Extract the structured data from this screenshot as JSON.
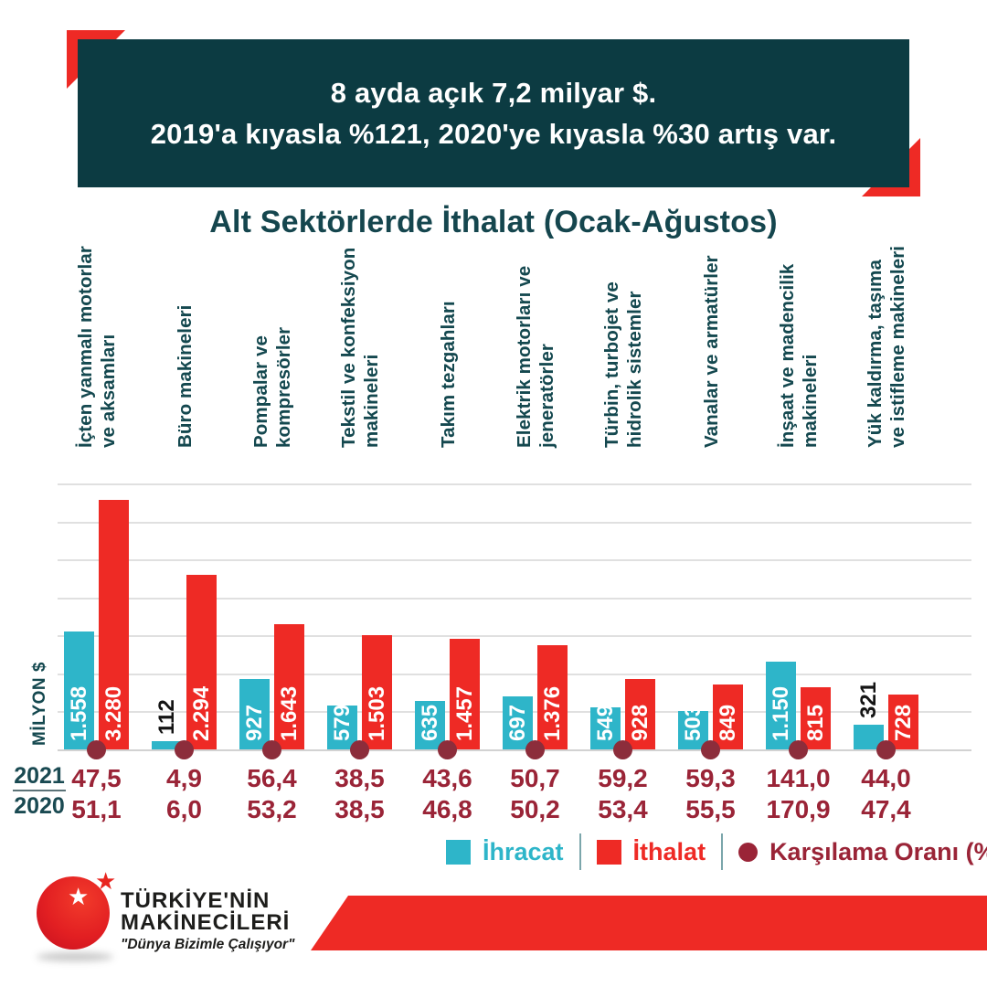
{
  "header": {
    "line1": "8 ayda açık 7,2 milyar $.",
    "line2": "2019'a kıyasla %121, 2020'ye kıyasla %30 artış var."
  },
  "chart_data": {
    "type": "bar",
    "title": "Alt Sektörlerde İthalat (Ocak-Ağustos)",
    "ylabel": "MİLYON $",
    "ylim": [
      0,
      3500
    ],
    "grid_interval": 500,
    "grid": true,
    "legend_position": "bottom",
    "categories": [
      "İçten yanmalı motorlar\nve aksamları",
      "Büro makineleri",
      "Pompalar ve\nkompresörler",
      "Tekstil ve konfeksiyon\nmakineleri",
      "Takım tezgahları",
      "Elektrik motorları ve\njeneratörler",
      "Türbin, turbojet ve\nhidrolik sistemler",
      "Vanalar ve armatürler",
      "İnşaat ve madencilik\nmakineleri",
      "Yük kaldırma, taşıma\nve istifleme makineleri"
    ],
    "series": [
      {
        "name": "İhracat",
        "color": "#2eb5c9",
        "values": [
          1558,
          112,
          927,
          579,
          635,
          697,
          549,
          503,
          1150,
          321
        ],
        "labels": [
          "1.558",
          "112",
          "927",
          "579",
          "635",
          "697",
          "549",
          "503",
          "1.150",
          "321"
        ]
      },
      {
        "name": "İthalat",
        "color": "#ee2a25",
        "values": [
          3280,
          2294,
          1643,
          1503,
          1457,
          1376,
          928,
          849,
          815,
          728
        ],
        "labels": [
          "3.280",
          "2.294",
          "1.643",
          "1.503",
          "1.457",
          "1.376",
          "928",
          "849",
          "815",
          "728"
        ]
      }
    ],
    "coverage_ratio": {
      "name": "Karşılama Oranı (%)",
      "text_color": "#9a2437",
      "dot_color": "#8c2d3b",
      "rows": [
        {
          "year": "2021",
          "values": [
            "47,5",
            "4,9",
            "56,4",
            "38,5",
            "43,6",
            "50,7",
            "59,2",
            "59,3",
            "141,0",
            "44,0"
          ]
        },
        {
          "year": "2020",
          "values": [
            "51,1",
            "6,0",
            "53,2",
            "38,5",
            "46,8",
            "50,2",
            "53,4",
            "55,5",
            "170,9",
            "47,4"
          ]
        }
      ]
    }
  },
  "legend": {
    "items": [
      {
        "label": "İhracat",
        "color": "#2eb5c9",
        "marker": "square"
      },
      {
        "label": "İthalat",
        "color": "#ee2a25",
        "marker": "square"
      },
      {
        "label": "Karşılama Oranı (%)",
        "color": "#9a2437",
        "marker": "circle"
      }
    ]
  },
  "logo": {
    "name_line1": "TÜRKİYE'NİN",
    "name_line2": "MAKİNECİLERİ",
    "tagline": "\"Dünya Bizimle Çalışıyor\""
  },
  "colors": {
    "banner_teal": "#0c3b42",
    "title_teal": "#15464e",
    "accent_red": "#ee2a25",
    "export_cyan": "#2eb5c9",
    "ratio_maroon": "#9a2437",
    "gridline": "#e0e0e0"
  }
}
